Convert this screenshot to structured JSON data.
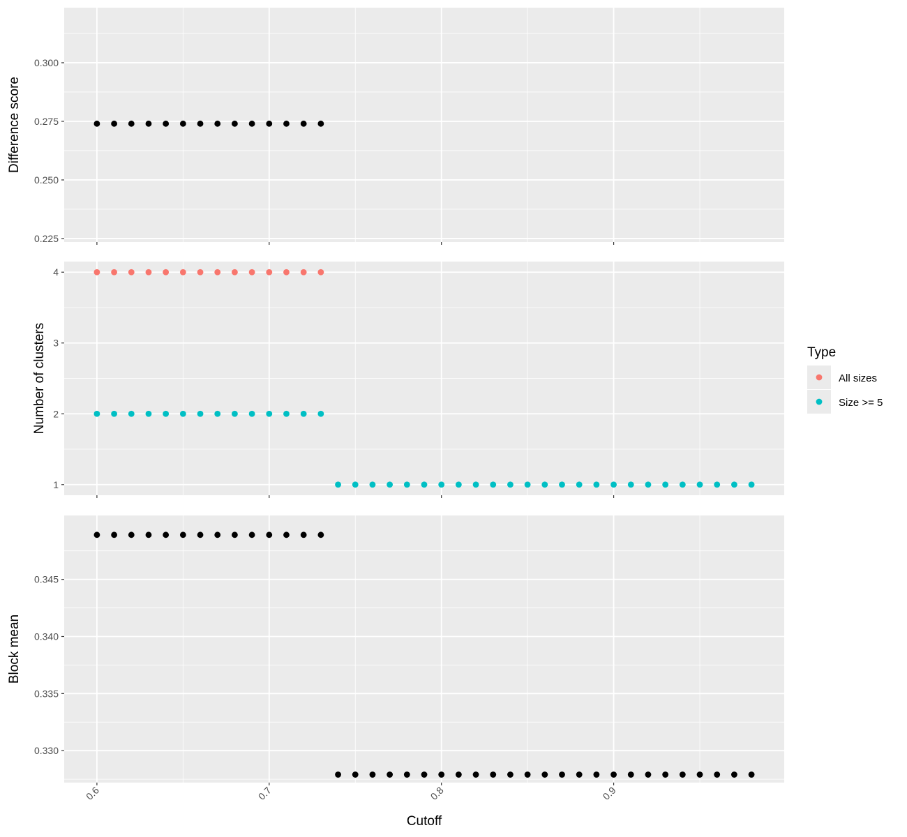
{
  "chart_data": {
    "type": "scatter",
    "x": {
      "label": "Cutoff",
      "lim": [
        0.581,
        0.999
      ],
      "ticks": [
        0.6,
        0.7,
        0.8,
        0.9
      ],
      "tick_labels": [
        "0.6",
        "0.7",
        "0.8",
        "0.9"
      ]
    },
    "panels": [
      {
        "ylabel": "Difference score",
        "ylim": [
          0.2235,
          0.3235
        ],
        "yticks": [
          0.225,
          0.25,
          0.275,
          0.3
        ],
        "ytick_labels": [
          "0.225",
          "0.250",
          "0.275",
          "0.300"
        ],
        "series": [
          {
            "color": "#000000",
            "x": [
              0.6,
              0.61,
              0.62,
              0.63,
              0.64,
              0.65,
              0.66,
              0.67,
              0.68,
              0.69,
              0.7,
              0.71,
              0.72,
              0.73
            ],
            "y": [
              0.274,
              0.274,
              0.274,
              0.274,
              0.274,
              0.274,
              0.274,
              0.274,
              0.274,
              0.274,
              0.274,
              0.274,
              0.274,
              0.274
            ]
          }
        ]
      },
      {
        "ylabel": "Number of clusters",
        "ylim": [
          0.85,
          4.15
        ],
        "yticks": [
          1,
          2,
          3,
          4
        ],
        "ytick_labels": [
          "1",
          "2",
          "3",
          "4"
        ],
        "series": [
          {
            "name": "All sizes",
            "color": "#F8766D",
            "x": [
              0.6,
              0.61,
              0.62,
              0.63,
              0.64,
              0.65,
              0.66,
              0.67,
              0.68,
              0.69,
              0.7,
              0.71,
              0.72,
              0.73
            ],
            "y": [
              4,
              4,
              4,
              4,
              4,
              4,
              4,
              4,
              4,
              4,
              4,
              4,
              4,
              4
            ]
          },
          {
            "name": "Size >= 5",
            "color": "#00BFC4",
            "x": [
              0.6,
              0.61,
              0.62,
              0.63,
              0.64,
              0.65,
              0.66,
              0.67,
              0.68,
              0.69,
              0.7,
              0.71,
              0.72,
              0.73,
              0.74,
              0.75,
              0.76,
              0.77,
              0.78,
              0.79,
              0.8,
              0.81,
              0.82,
              0.83,
              0.84,
              0.85,
              0.86,
              0.87,
              0.88,
              0.89,
              0.9,
              0.91,
              0.92,
              0.93,
              0.94,
              0.95,
              0.96,
              0.97,
              0.98
            ],
            "y": [
              2,
              2,
              2,
              2,
              2,
              2,
              2,
              2,
              2,
              2,
              2,
              2,
              2,
              2,
              1,
              1,
              1,
              1,
              1,
              1,
              1,
              1,
              1,
              1,
              1,
              1,
              1,
              1,
              1,
              1,
              1,
              1,
              1,
              1,
              1,
              1,
              1,
              1,
              1
            ]
          }
        ]
      },
      {
        "ylabel": "Block mean",
        "ylim": [
          0.3272,
          0.3506
        ],
        "yticks": [
          0.33,
          0.335,
          0.34,
          0.345
        ],
        "ytick_labels": [
          "0.330",
          "0.335",
          "0.340",
          "0.345"
        ],
        "series": [
          {
            "color": "#000000",
            "x": [
              0.6,
              0.61,
              0.62,
              0.63,
              0.64,
              0.65,
              0.66,
              0.67,
              0.68,
              0.69,
              0.7,
              0.71,
              0.72,
              0.73,
              0.74,
              0.75,
              0.76,
              0.77,
              0.78,
              0.79,
              0.8,
              0.81,
              0.82,
              0.83,
              0.84,
              0.85,
              0.86,
              0.87,
              0.88,
              0.89,
              0.9,
              0.91,
              0.92,
              0.93,
              0.94,
              0.95,
              0.96,
              0.97,
              0.98
            ],
            "y": [
              0.3489,
              0.3489,
              0.3489,
              0.3489,
              0.3489,
              0.3489,
              0.3489,
              0.3489,
              0.3489,
              0.3489,
              0.3489,
              0.3489,
              0.3489,
              0.3489,
              0.3279,
              0.3279,
              0.3279,
              0.3279,
              0.3279,
              0.3279,
              0.3279,
              0.3279,
              0.3279,
              0.3279,
              0.3279,
              0.3279,
              0.3279,
              0.3279,
              0.3279,
              0.3279,
              0.3279,
              0.3279,
              0.3279,
              0.3279,
              0.3279,
              0.3279,
              0.3279,
              0.3279,
              0.3279
            ]
          }
        ]
      }
    ],
    "legend": {
      "title": "Type",
      "position": "right",
      "entries": [
        {
          "label": "All sizes",
          "color": "#F8766D"
        },
        {
          "label": "Size >= 5",
          "color": "#00BFC4"
        }
      ]
    },
    "grid": true,
    "background": "#EBEBEB"
  }
}
